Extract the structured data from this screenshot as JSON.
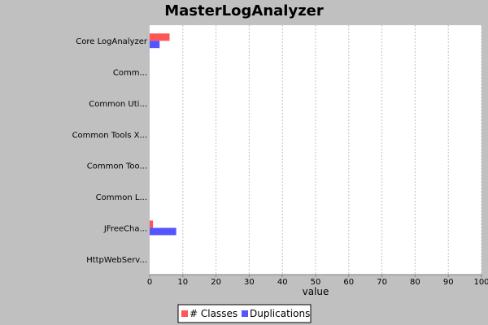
{
  "chart_data": {
    "type": "bar",
    "orientation": "horizontal",
    "title": "MasterLogAnalyzer",
    "xlabel": "value",
    "ylabel": "",
    "xlim": [
      0,
      100
    ],
    "xticks": [
      0,
      10,
      20,
      30,
      40,
      50,
      60,
      70,
      80,
      90,
      100
    ],
    "categories": [
      "Core LogAnalyzer",
      "Comm...",
      "Common Uti...",
      "Common Tools X...",
      "Common Too...",
      "Common L...",
      "JFreeCha...",
      "HttpWebServ..."
    ],
    "series": [
      {
        "name": "# Classes",
        "color": "#ff5555",
        "values": [
          6,
          0,
          0,
          0,
          0,
          0,
          1,
          0
        ]
      },
      {
        "name": "Duplications",
        "color": "#5555ff",
        "values": [
          3,
          0,
          0,
          0,
          0,
          0,
          8,
          0
        ]
      }
    ],
    "grid": true,
    "legend_position": "bottom"
  }
}
